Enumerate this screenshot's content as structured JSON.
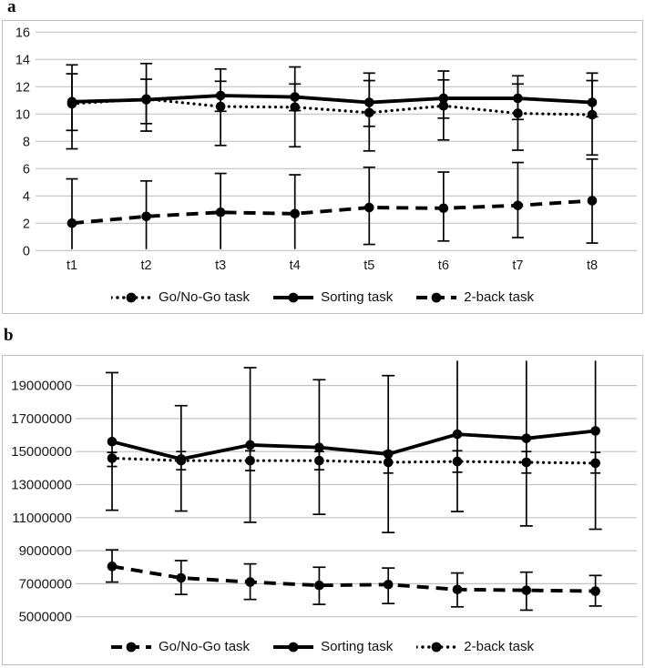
{
  "colors": {
    "line": "#000000",
    "grid": "#c3c3c3",
    "panel_border": "#bdbdbd",
    "text": "#1a1a1a"
  },
  "panels": [
    {
      "label": "a"
    },
    {
      "label": "b"
    }
  ],
  "chart_data": [
    {
      "type": "line",
      "panel_label": "a",
      "title": "",
      "xlabel": "",
      "ylabel": "",
      "categories": [
        "t1",
        "t2",
        "t3",
        "t4",
        "t5",
        "t6",
        "t7",
        "t8"
      ],
      "ylim": [
        0,
        16
      ],
      "yticks": [
        0,
        2,
        4,
        6,
        8,
        10,
        12,
        14,
        16
      ],
      "grid": true,
      "error_bars": true,
      "legend_position": "bottom",
      "series": [
        {
          "name": "Go/No-Go task",
          "style": "dotted",
          "values": [
            10.75,
            11.1,
            10.55,
            10.5,
            10.1,
            10.6,
            10.05,
            9.95
          ],
          "err_low": [
            7.45,
            8.75,
            7.7,
            7.6,
            7.3,
            8.1,
            7.35,
            7.0
          ],
          "err_high": [
            13.6,
            13.7,
            13.3,
            13.45,
            13.0,
            13.15,
            12.8,
            13.0
          ]
        },
        {
          "name": "Sorting task",
          "style": "solid",
          "values": [
            10.9,
            11.05,
            11.35,
            11.25,
            10.85,
            11.15,
            11.15,
            10.85
          ],
          "err_low": [
            8.8,
            9.3,
            10.2,
            10.25,
            9.1,
            9.7,
            9.6,
            9.8
          ],
          "err_high": [
            12.95,
            12.55,
            12.4,
            12.2,
            12.45,
            12.5,
            12.2,
            12.45
          ]
        },
        {
          "name": "2-back task",
          "style": "dashed",
          "values": [
            2.0,
            2.5,
            2.8,
            2.7,
            3.15,
            3.1,
            3.3,
            3.65
          ],
          "err_low": [
            0.1,
            0.1,
            0.1,
            0.1,
            0.45,
            0.7,
            0.95,
            0.55
          ],
          "err_high": [
            5.25,
            5.1,
            5.65,
            5.55,
            6.1,
            5.75,
            6.45,
            6.7
          ]
        }
      ]
    },
    {
      "type": "line",
      "panel_label": "b",
      "title": "",
      "xlabel": "",
      "ylabel": "",
      "categories": [],
      "x_tick_labels_visible": false,
      "n_points": 8,
      "ylim": [
        5000000,
        20700000
      ],
      "yticks": [
        5000000,
        7000000,
        9000000,
        11000000,
        13000000,
        15000000,
        17000000,
        19000000
      ],
      "grid": true,
      "error_bars": true,
      "legend_position": "bottom",
      "series": [
        {
          "name": "Go/No-Go task",
          "style": "dashed",
          "values": [
            8050000,
            7350000,
            7100000,
            6900000,
            6950000,
            6650000,
            6600000,
            6550000
          ],
          "err_low": [
            7100000,
            6350000,
            6050000,
            5750000,
            5800000,
            5600000,
            5400000,
            5650000
          ],
          "err_high": [
            9050000,
            8400000,
            8200000,
            8000000,
            7950000,
            7650000,
            7700000,
            7500000
          ]
        },
        {
          "name": "Sorting task",
          "style": "solid",
          "values": [
            15600000,
            14550000,
            15400000,
            15250000,
            14850000,
            16050000,
            15800000,
            16250000
          ],
          "err_low": [
            11450000,
            11400000,
            10720000,
            11200000,
            10100000,
            11370000,
            10500000,
            10300000
          ],
          "err_high": [
            19780000,
            17780000,
            20080000,
            19350000,
            19600000,
            20500000,
            20500000,
            20500000
          ]
        },
        {
          "name": "2-back task",
          "style": "dotted",
          "values": [
            14600000,
            14450000,
            14450000,
            14450000,
            14350000,
            14400000,
            14350000,
            14300000
          ],
          "err_low": [
            14100000,
            13900000,
            13850000,
            13900000,
            13700000,
            13750000,
            13700000,
            13700000
          ],
          "err_high": [
            14950000,
            15000000,
            15050000,
            15000000,
            15000000,
            15050000,
            15000000,
            14950000
          ]
        }
      ]
    }
  ]
}
